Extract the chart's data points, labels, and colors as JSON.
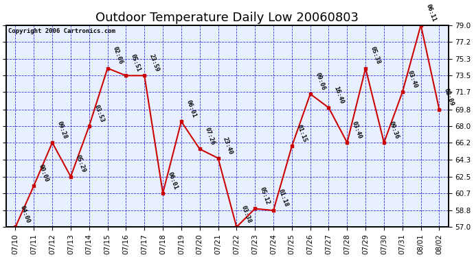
{
  "title": "Outdoor Temperature Daily Low 20060803",
  "copyright": "Copyright 2006 Cartronics.com",
  "ylim": [
    57.0,
    79.0
  ],
  "yticks": [
    57.0,
    58.8,
    60.7,
    62.5,
    64.3,
    66.2,
    68.0,
    69.8,
    71.7,
    73.5,
    75.3,
    77.2,
    79.0
  ],
  "bg_color": "#ffffff",
  "plot_bg_color": "#e8f0ff",
  "grid_color": "#0000cc",
  "line_color": "#cc0000",
  "marker_color": "#cc0000",
  "title_color": "#000000",
  "copyright_color": "#000000",
  "dates": [
    "07/10",
    "07/11",
    "07/12",
    "07/13",
    "07/14",
    "07/15",
    "07/16",
    "07/17",
    "07/18",
    "07/19",
    "07/20",
    "07/21",
    "07/22",
    "07/23",
    "07/24",
    "07/25",
    "07/26",
    "07/27",
    "07/28",
    "07/29",
    "07/30",
    "07/31",
    "08/01",
    "08/02"
  ],
  "values": [
    57.0,
    61.5,
    66.2,
    62.5,
    68.0,
    74.3,
    73.5,
    73.5,
    60.7,
    68.5,
    65.5,
    64.5,
    57.0,
    59.0,
    58.8,
    65.8,
    71.5,
    70.0,
    66.2,
    74.3,
    66.2,
    71.7,
    79.0,
    69.8
  ],
  "labels": [
    "04:00",
    "00:00",
    "09:28",
    "05:29",
    "03:53",
    "02:06",
    "05:51",
    "23:59",
    "06:01",
    "06:01",
    "07:26",
    "23:40",
    "03:38",
    "05:12",
    "01:18",
    "01:15",
    "09:06",
    "16:40",
    "03:40",
    "05:38",
    "09:36",
    "03:40",
    "06:11",
    "02:09"
  ],
  "title_fontsize": 13,
  "label_fontsize": 6.5,
  "tick_fontsize": 7.5,
  "copyright_fontsize": 6.5,
  "linewidth": 1.5,
  "markersize": 3.5
}
